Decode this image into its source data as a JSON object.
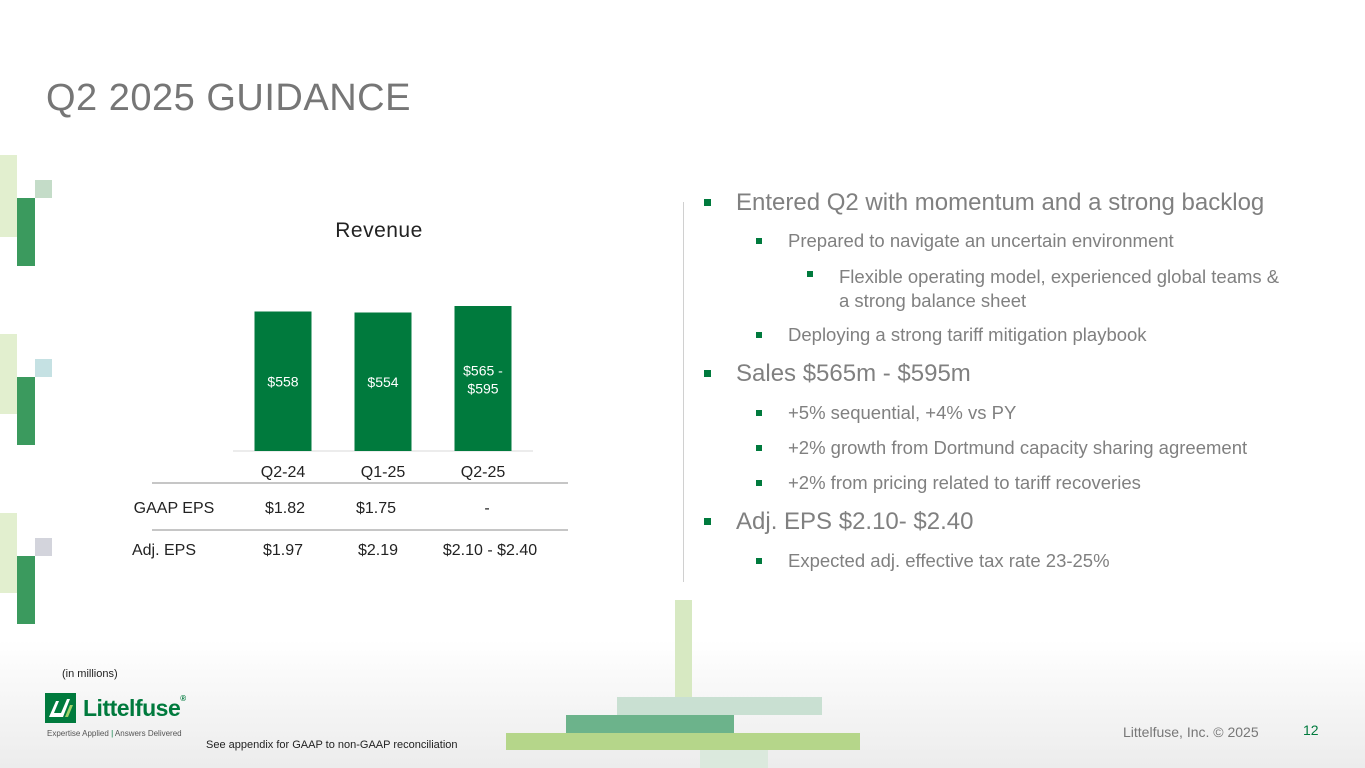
{
  "slide": {
    "title": "Q2 2025 GUIDANCE",
    "page_number": "12",
    "copyright": "Littelfuse, Inc. © 2025",
    "footnote_units": "(in millions)",
    "footnote_appendix": "See appendix for GAAP to non-GAAP reconciliation"
  },
  "logo": {
    "wordmark": "Littelfuse",
    "registered": "®",
    "tagline_left": "Expertise Applied",
    "tagline_right": "Answers Delivered"
  },
  "colors": {
    "accent_green": "#007a3d",
    "title_gray": "#767676",
    "bullet_text": "#808080"
  },
  "chart_data": {
    "type": "bar",
    "title": "Revenue",
    "categories": [
      "Q2-24",
      "Q1-25",
      "Q2-25"
    ],
    "values": [
      558,
      554,
      580
    ],
    "range": [
      null,
      null,
      [
        565,
        595
      ]
    ],
    "data_labels": [
      "$558",
      "$554",
      "$565 - $595"
    ],
    "bar_color": "#007a3d",
    "xlabel": "",
    "ylabel": "",
    "table": {
      "rows": [
        {
          "label": "GAAP EPS",
          "values": [
            "$1.82",
            "$1.75",
            "-"
          ]
        },
        {
          "label": "Adj. EPS",
          "values": [
            "$1.97",
            "$2.19",
            "$2.10 - $2.40"
          ]
        }
      ]
    }
  },
  "bullets": [
    {
      "level": 1,
      "text": "Entered Q2 with momentum and a strong backlog"
    },
    {
      "level": 2,
      "text": "Prepared to navigate an uncertain environment"
    },
    {
      "level": 3,
      "text": "Flexible operating model, experienced global teams &",
      "text2": "a strong balance sheet"
    },
    {
      "level": 2,
      "text": "Deploying a strong tariff mitigation playbook"
    },
    {
      "level": 1,
      "text": "Sales $565m - $595m"
    },
    {
      "level": 2,
      "text": "+5% sequential, +4% vs PY"
    },
    {
      "level": 2,
      "text": "+2% growth from Dortmund capacity sharing agreement"
    },
    {
      "level": 2,
      "text": "+2% from pricing related to tariff recoveries"
    },
    {
      "level": 1,
      "text": "Adj. EPS $2.10- $2.40"
    },
    {
      "level": 2,
      "text": "Expected adj. effective tax rate 23-25%"
    }
  ]
}
